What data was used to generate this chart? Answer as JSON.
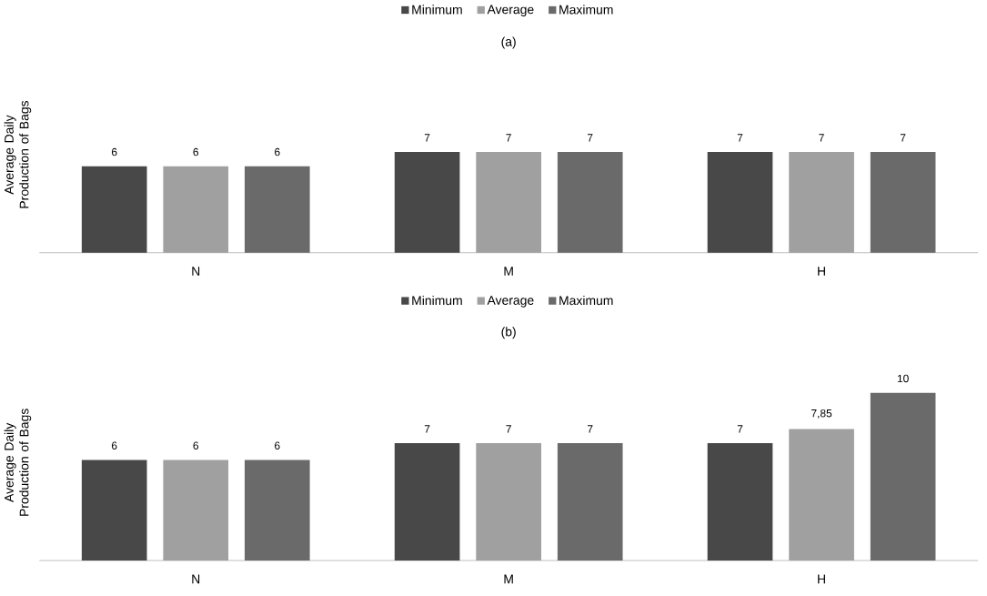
{
  "chart_data": [
    {
      "type": "bar",
      "title": "(a)",
      "ylabel": "Average Daily Production of Bags",
      "categories": [
        "N",
        "M",
        "H"
      ],
      "legend": "top",
      "series": [
        {
          "name": "Minimum",
          "color": "#484848",
          "values": [
            6,
            7,
            7
          ],
          "value_labels": [
            "6",
            "7",
            "7"
          ]
        },
        {
          "name": "Average",
          "color": "#a0a0a0",
          "values": [
            6,
            7,
            7
          ],
          "value_labels": [
            "6",
            "7",
            "7"
          ]
        },
        {
          "name": "Maximum",
          "color": "#6a6a6a",
          "values": [
            6,
            7,
            7
          ],
          "value_labels": [
            "6",
            "7",
            "7"
          ]
        }
      ]
    },
    {
      "type": "bar",
      "title": "(b)",
      "ylabel": "Average Daily Production of Bags",
      "categories": [
        "N",
        "M",
        "H"
      ],
      "legend": "top",
      "series": [
        {
          "name": "Minimum",
          "color": "#484848",
          "values": [
            6,
            7,
            7
          ],
          "value_labels": [
            "6",
            "7",
            "7"
          ]
        },
        {
          "name": "Average",
          "color": "#a0a0a0",
          "values": [
            6,
            7,
            7.85
          ],
          "value_labels": [
            "6",
            "7",
            "7,85"
          ]
        },
        {
          "name": "Maximum",
          "color": "#6a6a6a",
          "values": [
            6,
            7,
            10
          ],
          "value_labels": [
            "6",
            "7",
            "10"
          ]
        }
      ]
    }
  ]
}
